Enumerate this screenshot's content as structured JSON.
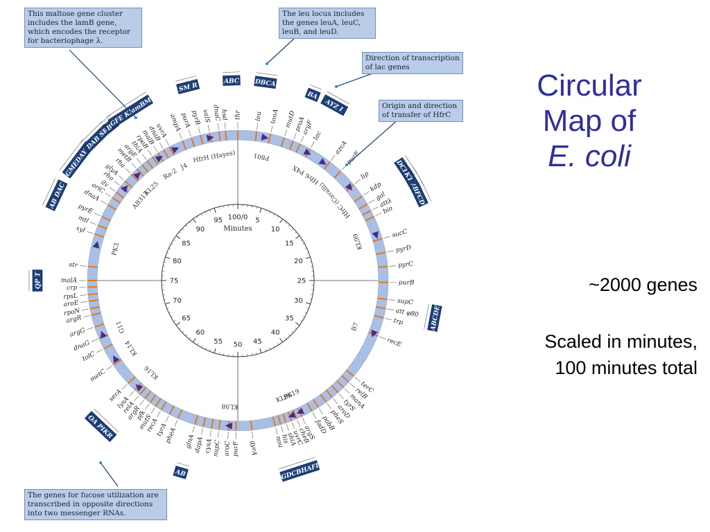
{
  "slide": {
    "title_lines": [
      "Circular",
      "Map of",
      "E. coli"
    ],
    "gene_count": "~2000 genes",
    "scale_line1": "Scaled in minutes,",
    "scale_line2": "100 minutes total"
  },
  "callouts": {
    "maltose": "This maltose gene cluster includes the lamB gene, which encodes the receptor for bacteriophage λ.",
    "leu": "The leu locus includes the genes leuA, leuC, leuB, and leuD.",
    "lac": "Direction of transcription of lac genes",
    "origin": "Origin and direction of transfer of HfrC",
    "fucose": "The genes for fucose utilization are transcribed in opposite directions into two messenger RNAs."
  },
  "map": {
    "center_label": "Minutes",
    "minute_labels": [
      "100/0",
      "5",
      "10",
      "15",
      "20",
      "25",
      "30",
      "35",
      "40",
      "45",
      "50",
      "55",
      "60",
      "65",
      "70",
      "75",
      "80",
      "85",
      "90",
      "95"
    ],
    "hfr_strains": [
      {
        "name": "HfrH (Hayes)",
        "minute": 97
      },
      {
        "name": "P801",
        "minute": 3
      },
      {
        "name": "P4X",
        "minute": 8
      },
      {
        "name": "Hfr6",
        "minute": 10
      },
      {
        "name": "HfrC (Cavalli)",
        "minute": 14
      },
      {
        "name": "KL99",
        "minute": 20
      },
      {
        "name": "B7",
        "minute": 31
      },
      {
        "name": "PK19",
        "minute": 43
      },
      {
        "name": "KL96",
        "minute": 44
      },
      {
        "name": "KL98",
        "minute": 51
      },
      {
        "name": "KL16",
        "minute": 62
      },
      {
        "name": "KL14",
        "minute": 66
      },
      {
        "name": "G11",
        "minute": 69
      },
      {
        "name": "PK3",
        "minute": 79
      },
      {
        "name": "AB313",
        "minute": 86
      },
      {
        "name": "KL25",
        "minute": 88
      },
      {
        "name": "Ra-2",
        "minute": 91
      },
      {
        "name": "J4",
        "minute": 93
      }
    ],
    "genes": [
      {
        "name": "thr",
        "minute": 0
      },
      {
        "name": "leu",
        "minute": 2
      },
      {
        "name": "tonA",
        "minute": 3.5
      },
      {
        "name": "mutD",
        "minute": 5
      },
      {
        "name": "proA",
        "minute": 6
      },
      {
        "name": "argF",
        "minute": 6.8
      },
      {
        "name": "lac",
        "minute": 8
      },
      {
        "name": "azcA",
        "minute": 10.5
      },
      {
        "name": "purE",
        "minute": 12
      },
      {
        "name": "lip",
        "minute": 14
      },
      {
        "name": "kdp",
        "minute": 15.5
      },
      {
        "name": "gal",
        "minute": 16.5
      },
      {
        "name": "attλ",
        "minute": 17.3
      },
      {
        "name": "bio",
        "minute": 18
      },
      {
        "name": "sucC",
        "minute": 20.5
      },
      {
        "name": "pyrD",
        "minute": 22
      },
      {
        "name": "pyrC",
        "minute": 23.5
      },
      {
        "name": "purB",
        "minute": 25.2
      },
      {
        "name": "supC",
        "minute": 27
      },
      {
        "name": "att φ80",
        "minute": 28
      },
      {
        "name": "trp",
        "minute": 29
      },
      {
        "name": "recE",
        "minute": 31
      },
      {
        "name": "terC",
        "minute": 36
      },
      {
        "name": "relB",
        "minute": 36.8
      },
      {
        "name": "manA",
        "minute": 37.6
      },
      {
        "name": "tyrS",
        "minute": 38.4
      },
      {
        "name": "aroD",
        "minute": 39.2
      },
      {
        "name": "pheS",
        "minute": 40
      },
      {
        "name": "pabB",
        "minute": 41
      },
      {
        "name": "fadD",
        "minute": 41.8
      },
      {
        "name": "argS",
        "minute": 43
      },
      {
        "name": "cheB",
        "minute": 43.6
      },
      {
        "name": "uvrC",
        "minute": 44.2
      },
      {
        "name": "shiA",
        "minute": 44.8
      },
      {
        "name": "his",
        "minute": 45.4
      },
      {
        "name": "nou",
        "minute": 46
      },
      {
        "name": "gyrA",
        "minute": 48.5
      },
      {
        "name": "purF",
        "minute": 50.2
      },
      {
        "name": "aroC",
        "minute": 51
      },
      {
        "name": "nupC",
        "minute": 52
      },
      {
        "name": "cysA",
        "minute": 52.8
      },
      {
        "name": "dapA",
        "minute": 53.7
      },
      {
        "name": "glnA",
        "minute": 54.6
      },
      {
        "name": "pheA",
        "minute": 56.5
      },
      {
        "name": "tyrA",
        "minute": 57.5
      },
      {
        "name": "recA",
        "minute": 58.5
      },
      {
        "name": "mutS",
        "minute": 59.2
      },
      {
        "name": "pfk",
        "minute": 59.9
      },
      {
        "name": "argR",
        "minute": 60.6
      },
      {
        "name": "relA",
        "minute": 61.3
      },
      {
        "name": "lysA",
        "minute": 62
      },
      {
        "name": "serA",
        "minute": 63
      },
      {
        "name": "metC",
        "minute": 65.5
      },
      {
        "name": "tolC",
        "minute": 67.5
      },
      {
        "name": "dnaG",
        "minute": 68.7
      },
      {
        "name": "argG",
        "minute": 70
      },
      {
        "name": "argR",
        "minute": 71.3
      },
      {
        "name": "rpoN",
        "minute": 72
      },
      {
        "name": "aroE",
        "minute": 72.8
      },
      {
        "name": "rpsL",
        "minute": 73.5
      },
      {
        "name": "crp",
        "minute": 74.3
      },
      {
        "name": "malA",
        "minute": 75
      },
      {
        "name": "str",
        "minute": 76.5
      },
      {
        "name": "xyl",
        "minute": 80
      },
      {
        "name": "mtl",
        "minute": 81
      },
      {
        "name": "pyrE",
        "minute": 82
      },
      {
        "name": "dnaA",
        "minute": 83.4
      },
      {
        "name": "oriC",
        "minute": 84.3
      },
      {
        "name": "ilv",
        "minute": 85
      },
      {
        "name": "rho",
        "minute": 85.8
      },
      {
        "name": "glyA",
        "minute": 86.5
      },
      {
        "name": "rha",
        "minute": 87.5
      },
      {
        "name": "metB",
        "minute": 88.3
      },
      {
        "name": "argE",
        "minute": 89
      },
      {
        "name": "thiA",
        "minute": 89.7
      },
      {
        "name": "rpoB",
        "minute": 90.4
      },
      {
        "name": "malB",
        "minute": 91.1
      },
      {
        "name": "dnaB",
        "minute": 91.8
      },
      {
        "name": "uvrA",
        "minute": 92.5
      },
      {
        "name": "ampA",
        "minute": 94
      },
      {
        "name": "purA",
        "minute": 95
      },
      {
        "name": "pyrB",
        "minute": 96
      },
      {
        "name": "valS",
        "minute": 97
      },
      {
        "name": "dnaC",
        "minute": 98
      },
      {
        "name": "hsd",
        "minute": 98.7
      }
    ],
    "operon_boxes": [
      {
        "label": "SM R",
        "minute": 96
      },
      {
        "label": "ABC",
        "minute": 99.5
      },
      {
        "label": "DBCA",
        "minute": 2.2
      },
      {
        "label": "BA",
        "minute": 6.1
      },
      {
        "label": "AYZ I",
        "minute": 8
      },
      {
        "label": "DCBA",
        "minute": 15.6
      },
      {
        "label": "KTE",
        "minute": 16.5
      },
      {
        "label": "A",
        "minute": 17.1
      },
      {
        "label": "BFCD",
        "minute": 18
      },
      {
        "label": "ABCDE",
        "minute": 28
      },
      {
        "label": "GDCBHAFI",
        "minute": 45
      },
      {
        "label": "AB",
        "minute": 54.6
      },
      {
        "label": "OA PIKR",
        "minute": 62
      },
      {
        "label": "QP T",
        "minute": 75
      },
      {
        "label": "AB DAC",
        "minute": 82
      },
      {
        "label": "GMEDAY C",
        "minute": 85.3
      },
      {
        "label": "DAB SR",
        "minute": 87.6
      },
      {
        "label": "BC",
        "minute": 89.1
      },
      {
        "label": "GFE KlamBM",
        "minute": 91
      }
    ]
  }
}
